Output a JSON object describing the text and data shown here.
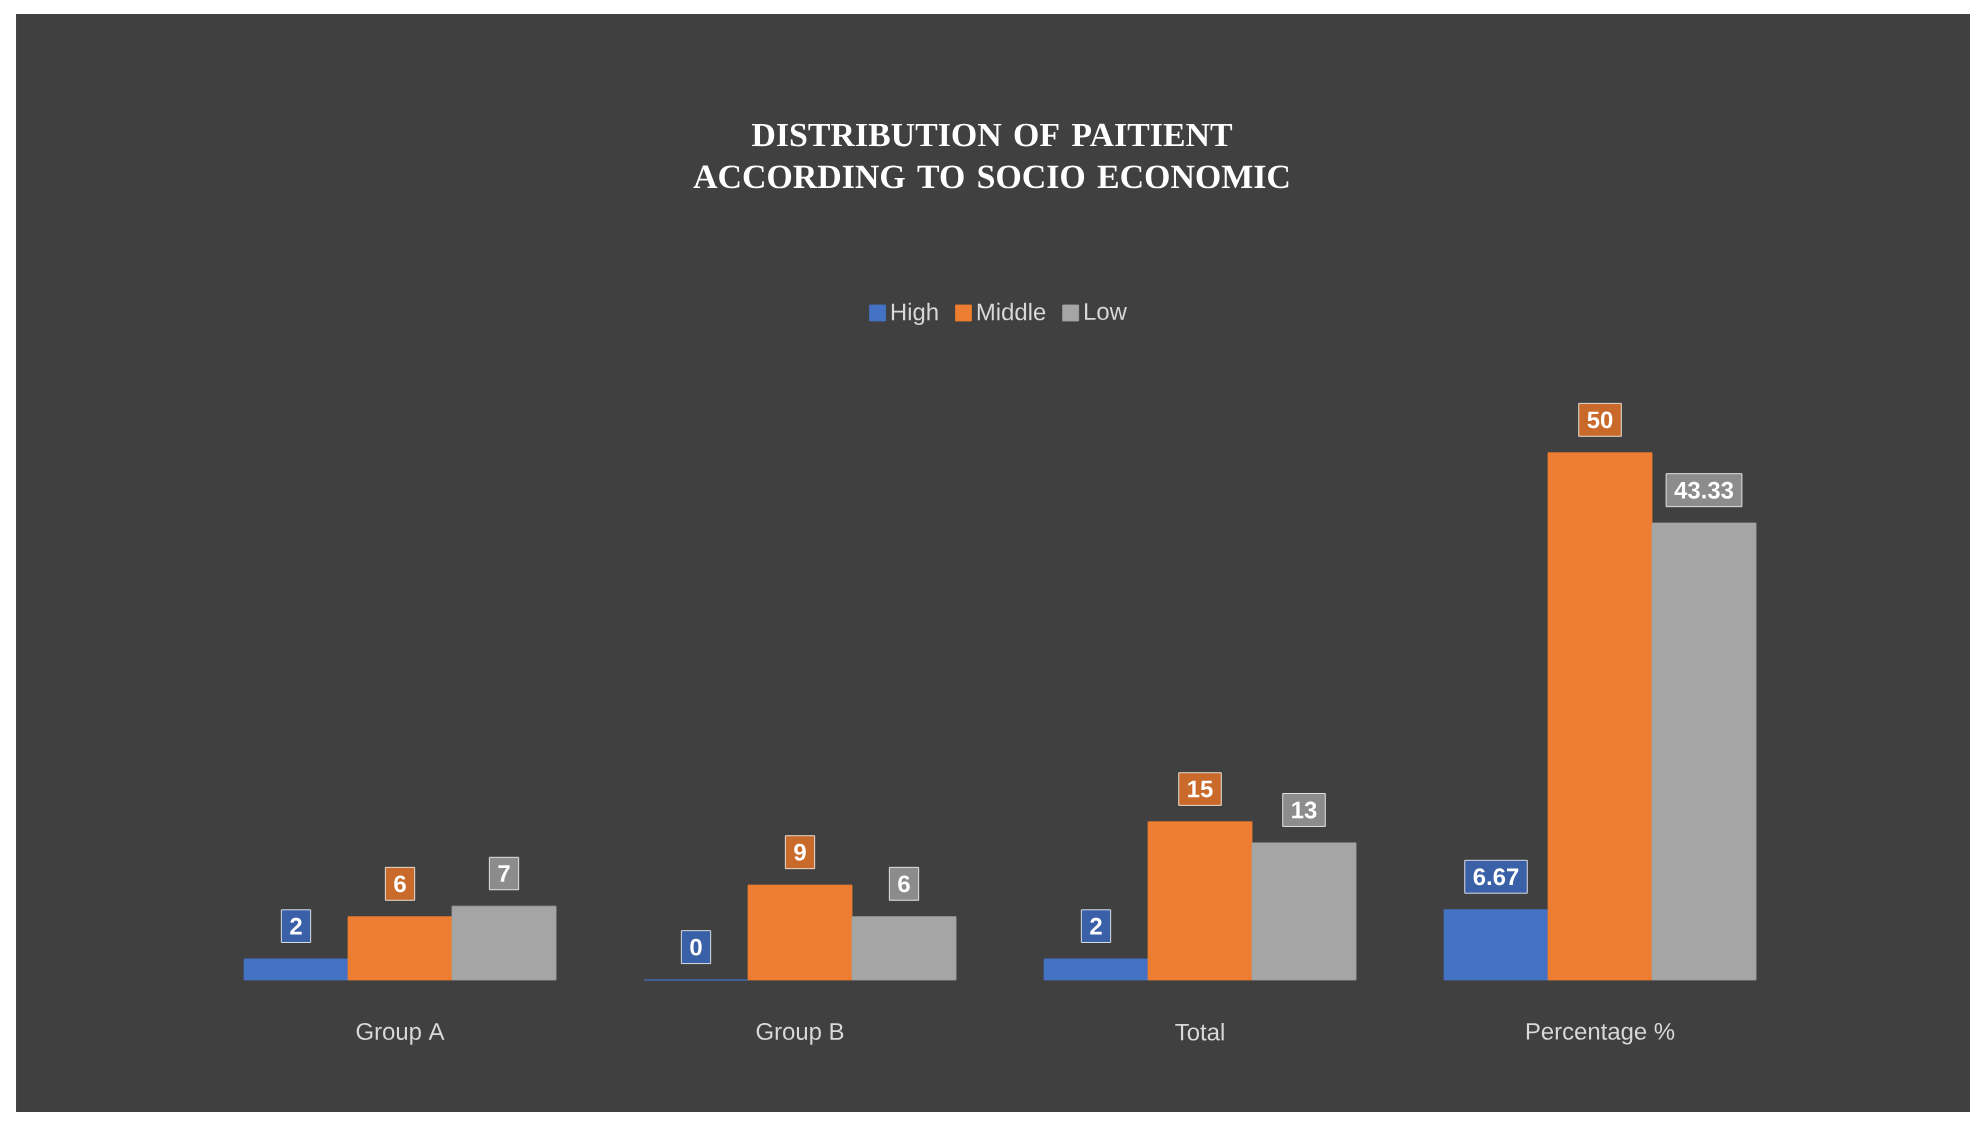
{
  "chart_data": {
    "type": "bar",
    "title": "DISTRIBUTION OF PAITIENT ACCORDING TO SOCIO ECONOMIC",
    "categories": [
      "Group A",
      "Group B",
      "Total",
      "Percentage %"
    ],
    "series": [
      {
        "name": "High",
        "color": "#4472c4",
        "values": [
          2,
          0,
          2,
          6.67
        ]
      },
      {
        "name": "Middle",
        "color": "#ed7d31",
        "values": [
          6,
          9,
          15,
          50
        ]
      },
      {
        "name": "Low",
        "color": "#a5a5a5",
        "values": [
          7,
          6,
          13,
          43.33
        ]
      }
    ],
    "data_labels": true,
    "legend": "top"
  }
}
